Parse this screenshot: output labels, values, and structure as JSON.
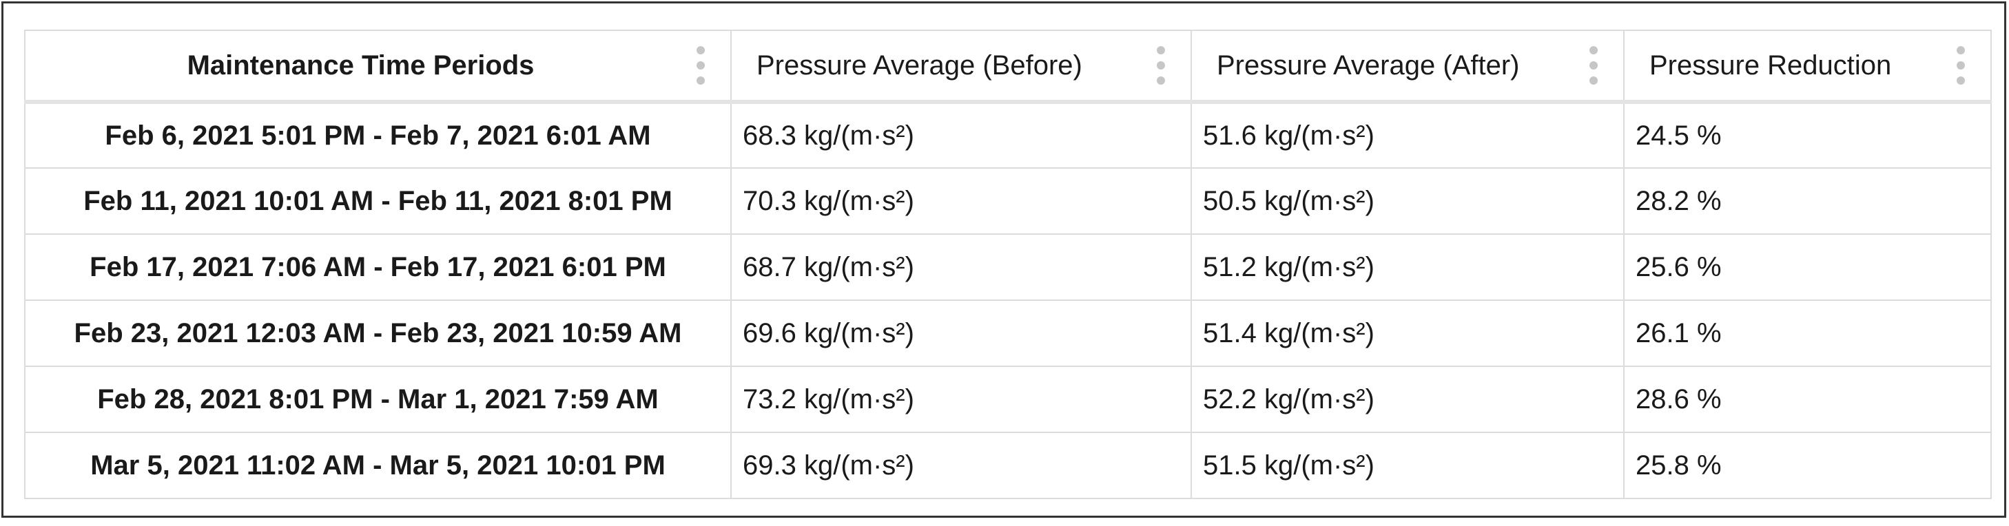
{
  "table": {
    "headers": [
      "Maintenance Time Periods",
      "Pressure Average (Before)",
      "Pressure Average (After)",
      "Pressure Reduction"
    ],
    "rows": [
      [
        "Feb 6, 2021 5:01 PM - Feb 7, 2021 6:01 AM",
        "68.3 kg/(m·s²)",
        "51.6 kg/(m·s²)",
        "24.5 %"
      ],
      [
        "Feb 11, 2021 10:01 AM - Feb 11, 2021 8:01 PM",
        "70.3 kg/(m·s²)",
        "50.5 kg/(m·s²)",
        "28.2 %"
      ],
      [
        "Feb 17, 2021 7:06 AM - Feb 17, 2021 6:01 PM",
        "68.7 kg/(m·s²)",
        "51.2 kg/(m·s²)",
        "25.6 %"
      ],
      [
        "Feb 23, 2021 12:03 AM - Feb 23, 2021 10:59 AM",
        "69.6 kg/(m·s²)",
        "51.4 kg/(m·s²)",
        "26.1 %"
      ],
      [
        "Feb 28, 2021 8:01 PM - Mar 1, 2021 7:59 AM",
        "73.2 kg/(m·s²)",
        "52.2 kg/(m·s²)",
        "28.6 %"
      ],
      [
        "Mar 5, 2021 11:02 AM - Mar 5, 2021 10:01 PM",
        "69.3 kg/(m·s²)",
        "51.5 kg/(m·s²)",
        "25.8 %"
      ]
    ]
  },
  "icons": {
    "column_menu": "kebab-menu-icon"
  },
  "colors": {
    "border": "#dcdcdc",
    "frame": "#333333",
    "kebab": "#c6c6c6",
    "text": "#1a1a1a"
  }
}
